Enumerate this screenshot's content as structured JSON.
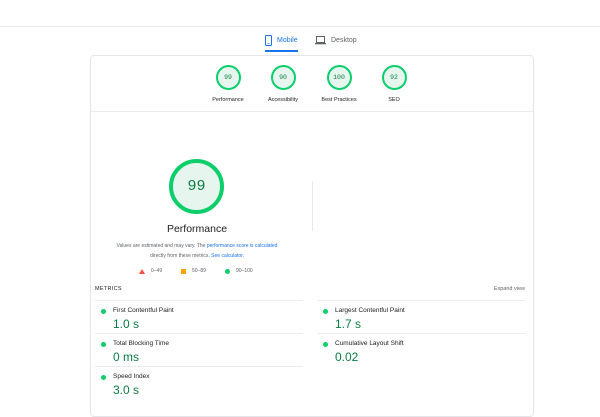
{
  "tabs": {
    "mobile": "Mobile",
    "desktop": "Desktop",
    "active": "Mobile"
  },
  "categories": [
    {
      "label": "Performance",
      "score": "99"
    },
    {
      "label": "Accessibility",
      "score": "90"
    },
    {
      "label": "Best Practices",
      "score": "100"
    },
    {
      "label": "SEO",
      "score": "92"
    }
  ],
  "performance": {
    "score": "99",
    "title": "Performance",
    "note_prefix": "Values are estimated and may vary. The",
    "note_link": "performance score is calculated",
    "note_middle": "directly from these metrics.",
    "note_link2": "See calculator.",
    "legend": {
      "fail": "0–49",
      "average": "50–89",
      "pass": "90–100"
    }
  },
  "metrics": {
    "title": "METRICS",
    "expand": "Expand view",
    "items": [
      {
        "name": "First Contentful Paint",
        "value": "1.0 s"
      },
      {
        "name": "Largest Contentful Paint",
        "value": "1.7 s"
      },
      {
        "name": "Total Blocking Time",
        "value": "0 ms"
      },
      {
        "name": "Cumulative Layout Shift",
        "value": "0.02"
      },
      {
        "name": "Speed Index",
        "value": "3.0 s"
      }
    ]
  },
  "colors": {
    "pass": "#0cce6b",
    "pass_text": "#0a7c42",
    "average": "#ffa400",
    "fail": "#ff4e42",
    "accent": "#1a73e8"
  }
}
